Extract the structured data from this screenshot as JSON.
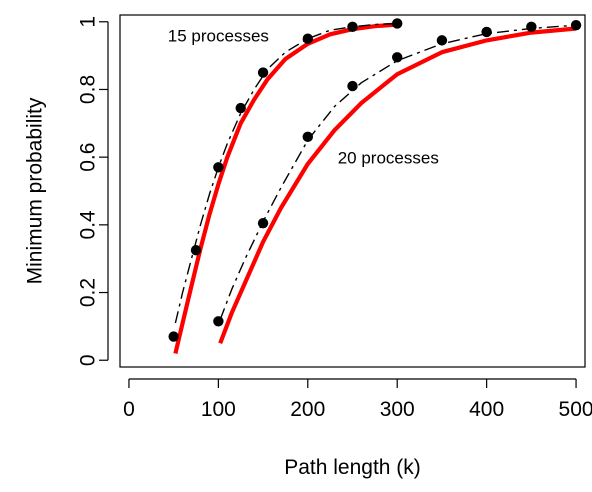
{
  "chart_data": {
    "type": "line",
    "title": "",
    "xlabel": "Path length (k)",
    "ylabel": "Minimum probability",
    "xlim": [
      -10,
      510
    ],
    "ylim": [
      -0.02,
      1.02
    ],
    "x_ticks": [
      0,
      100,
      200,
      300,
      400,
      500
    ],
    "y_ticks": [
      0,
      0.2,
      0.4,
      0.6,
      0.8,
      1
    ],
    "x_tick_labels": [
      "0",
      "100",
      "200",
      "300",
      "400",
      "500"
    ],
    "y_tick_labels": [
      "0",
      "0.2",
      "0.4",
      "0.6",
      "0.8",
      "1"
    ],
    "grid": false,
    "annotations": [
      {
        "text": "15 processes",
        "x": 100,
        "y": 0.955
      },
      {
        "text": "20 processes",
        "x": 290,
        "y": 0.595
      }
    ],
    "groups": [
      {
        "label": "15 processes",
        "points": {
          "x": [
            50,
            75,
            100,
            125,
            150,
            200,
            250,
            300
          ],
          "y": [
            0.07,
            0.325,
            0.57,
            0.745,
            0.85,
            0.95,
            0.985,
            0.995
          ]
        },
        "dashed": {
          "x": [
            52,
            60,
            70,
            80,
            90,
            100,
            110,
            125,
            140,
            155,
            175,
            200,
            225,
            250,
            275,
            300
          ],
          "y": [
            0.11,
            0.2,
            0.3,
            0.4,
            0.49,
            0.57,
            0.64,
            0.73,
            0.8,
            0.86,
            0.91,
            0.95,
            0.975,
            0.985,
            0.992,
            0.995
          ]
        },
        "solid": {
          "x": [
            52,
            60,
            70,
            80,
            90,
            100,
            110,
            125,
            140,
            155,
            175,
            200,
            225,
            250,
            275,
            300
          ],
          "y": [
            0.02,
            0.11,
            0.22,
            0.33,
            0.43,
            0.52,
            0.6,
            0.7,
            0.77,
            0.83,
            0.89,
            0.935,
            0.963,
            0.978,
            0.987,
            0.992
          ]
        }
      },
      {
        "label": "20 processes",
        "points": {
          "x": [
            100,
            150,
            200,
            250,
            300,
            350,
            400,
            450,
            500
          ],
          "y": [
            0.115,
            0.405,
            0.66,
            0.81,
            0.895,
            0.945,
            0.97,
            0.985,
            0.99
          ]
        },
        "dashed": {
          "x": [
            102,
            115,
            130,
            150,
            170,
            200,
            230,
            260,
            300,
            350,
            400,
            450,
            500
          ],
          "y": [
            0.12,
            0.21,
            0.3,
            0.41,
            0.51,
            0.65,
            0.75,
            0.82,
            0.885,
            0.935,
            0.965,
            0.98,
            0.99
          ]
        },
        "solid": {
          "x": [
            102,
            115,
            130,
            150,
            170,
            200,
            230,
            260,
            300,
            350,
            400,
            450,
            500
          ],
          "y": [
            0.05,
            0.14,
            0.23,
            0.35,
            0.45,
            0.58,
            0.68,
            0.76,
            0.845,
            0.91,
            0.945,
            0.968,
            0.98
          ]
        }
      }
    ],
    "colors": {
      "solid_line": "#ff0000",
      "dashed_line": "#000000",
      "points": "#000000",
      "axis": "#000000"
    }
  }
}
